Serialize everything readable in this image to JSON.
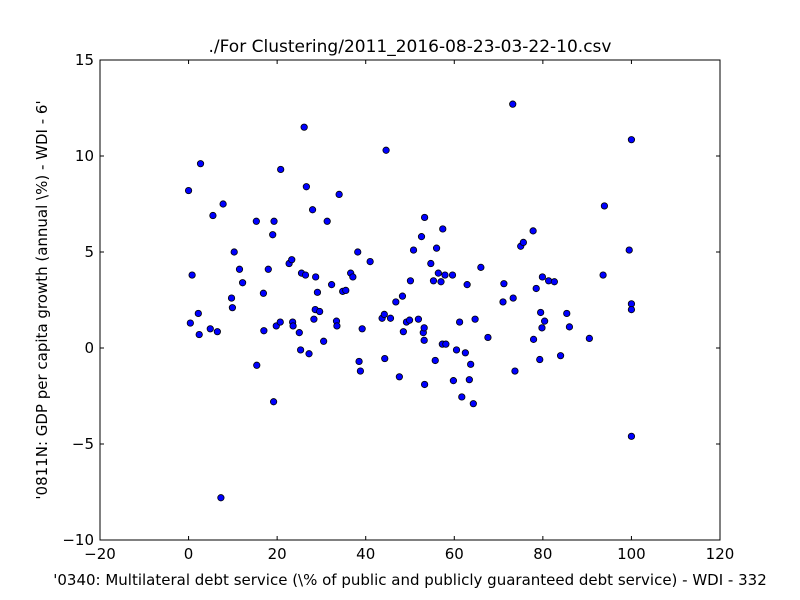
{
  "chart_data": {
    "type": "scatter",
    "title": "./For Clustering/2011_2016-08-23-03-22-10.csv",
    "xlabel": "'0340: Multilateral debt service  (\\% of public and publicly guaranteed debt service) - WDI - 332",
    "ylabel": "'0811N: GDP per capita growth  (annual \\%) - WDI - 6'",
    "xlim": [
      -20,
      120
    ],
    "ylim": [
      -10,
      15
    ],
    "xticks": [
      -20,
      0,
      20,
      40,
      60,
      80,
      100,
      120
    ],
    "yticks": [
      -10,
      -5,
      0,
      5,
      10,
      15
    ],
    "xtick_labels": [
      "−20",
      "0",
      "20",
      "40",
      "60",
      "80",
      "100",
      "120"
    ],
    "ytick_labels": [
      "−10",
      "−5",
      "0",
      "5",
      "10",
      "15"
    ],
    "grid": false,
    "marker_color": "#0000ff",
    "marker_edge": "#000000",
    "points": [
      [
        0.0,
        8.2
      ],
      [
        0.4,
        1.3
      ],
      [
        0.8,
        3.8
      ],
      [
        2.2,
        1.8
      ],
      [
        2.4,
        0.7
      ],
      [
        2.7,
        9.6
      ],
      [
        4.9,
        1.0
      ],
      [
        5.5,
        6.9
      ],
      [
        6.5,
        0.85
      ],
      [
        7.3,
        -7.8
      ],
      [
        7.8,
        7.5
      ],
      [
        9.7,
        2.6
      ],
      [
        9.9,
        2.1
      ],
      [
        10.3,
        5.0
      ],
      [
        11.5,
        4.1
      ],
      [
        12.2,
        3.4
      ],
      [
        15.3,
        6.6
      ],
      [
        15.4,
        -0.9
      ],
      [
        16.9,
        2.85
      ],
      [
        17.0,
        0.9
      ],
      [
        18.0,
        4.1
      ],
      [
        19.0,
        5.9
      ],
      [
        19.2,
        -2.8
      ],
      [
        19.3,
        6.6
      ],
      [
        19.8,
        1.15
      ],
      [
        20.7,
        1.35
      ],
      [
        20.8,
        9.3
      ],
      [
        22.7,
        4.4
      ],
      [
        23.3,
        4.6
      ],
      [
        23.5,
        1.35
      ],
      [
        23.6,
        1.15
      ],
      [
        25.0,
        0.8
      ],
      [
        25.3,
        -0.1
      ],
      [
        25.5,
        3.9
      ],
      [
        26.1,
        11.5
      ],
      [
        26.4,
        3.8
      ],
      [
        26.6,
        8.4
      ],
      [
        27.2,
        -0.3
      ],
      [
        28.0,
        7.2
      ],
      [
        28.3,
        1.5
      ],
      [
        28.6,
        2.0
      ],
      [
        28.7,
        3.7
      ],
      [
        29.1,
        2.9
      ],
      [
        29.6,
        1.9
      ],
      [
        30.5,
        0.35
      ],
      [
        31.3,
        6.6
      ],
      [
        32.3,
        3.3
      ],
      [
        33.4,
        1.4
      ],
      [
        33.5,
        1.15
      ],
      [
        34.0,
        8.0
      ],
      [
        34.8,
        2.95
      ],
      [
        35.5,
        3.0
      ],
      [
        36.6,
        3.9
      ],
      [
        37.1,
        3.7
      ],
      [
        38.2,
        5.0
      ],
      [
        38.5,
        -0.7
      ],
      [
        38.8,
        -1.2
      ],
      [
        39.2,
        1.0
      ],
      [
        41.0,
        4.5
      ],
      [
        43.7,
        1.55
      ],
      [
        44.2,
        1.75
      ],
      [
        44.3,
        -0.55
      ],
      [
        44.6,
        10.3
      ],
      [
        45.6,
        1.55
      ],
      [
        46.8,
        2.4
      ],
      [
        47.6,
        -1.5
      ],
      [
        48.3,
        2.7
      ],
      [
        48.5,
        0.85
      ],
      [
        49.2,
        1.35
      ],
      [
        49.9,
        1.45
      ],
      [
        50.1,
        3.5
      ],
      [
        50.8,
        5.1
      ],
      [
        51.9,
        1.5
      ],
      [
        52.6,
        5.8
      ],
      [
        53.0,
        0.8
      ],
      [
        53.2,
        0.4
      ],
      [
        53.2,
        1.05
      ],
      [
        53.3,
        -1.9
      ],
      [
        53.3,
        6.8
      ],
      [
        54.7,
        4.4
      ],
      [
        55.3,
        3.5
      ],
      [
        55.7,
        -0.65
      ],
      [
        56.0,
        5.2
      ],
      [
        56.4,
        3.9
      ],
      [
        57.0,
        3.45
      ],
      [
        57.3,
        0.2
      ],
      [
        57.4,
        6.2
      ],
      [
        57.9,
        3.8
      ],
      [
        58.1,
        0.2
      ],
      [
        59.6,
        3.8
      ],
      [
        59.8,
        -1.7
      ],
      [
        60.5,
        -0.1
      ],
      [
        61.2,
        1.35
      ],
      [
        61.7,
        -2.55
      ],
      [
        62.5,
        -0.25
      ],
      [
        62.9,
        3.3
      ],
      [
        63.4,
        -1.65
      ],
      [
        63.7,
        -0.85
      ],
      [
        64.3,
        -2.9
      ],
      [
        64.7,
        1.5
      ],
      [
        66.0,
        4.2
      ],
      [
        67.6,
        0.55
      ],
      [
        71.0,
        2.4
      ],
      [
        71.2,
        3.35
      ],
      [
        73.2,
        12.7
      ],
      [
        73.3,
        2.6
      ],
      [
        73.7,
        -1.2
      ],
      [
        75.0,
        5.3
      ],
      [
        75.6,
        5.5
      ],
      [
        77.8,
        6.1
      ],
      [
        77.9,
        0.45
      ],
      [
        78.5,
        3.1
      ],
      [
        79.3,
        -0.6
      ],
      [
        79.5,
        1.85
      ],
      [
        79.8,
        1.05
      ],
      [
        79.9,
        3.7
      ],
      [
        80.4,
        1.4
      ],
      [
        81.3,
        3.5
      ],
      [
        82.6,
        3.45
      ],
      [
        84.0,
        -0.4
      ],
      [
        85.4,
        1.8
      ],
      [
        86.0,
        1.1
      ],
      [
        90.5,
        0.5
      ],
      [
        93.6,
        3.8
      ],
      [
        93.9,
        7.4
      ],
      [
        99.5,
        5.1
      ],
      [
        100.0,
        10.85
      ],
      [
        100.0,
        2.3
      ],
      [
        100.0,
        2.0
      ],
      [
        100.0,
        -4.6
      ]
    ]
  }
}
